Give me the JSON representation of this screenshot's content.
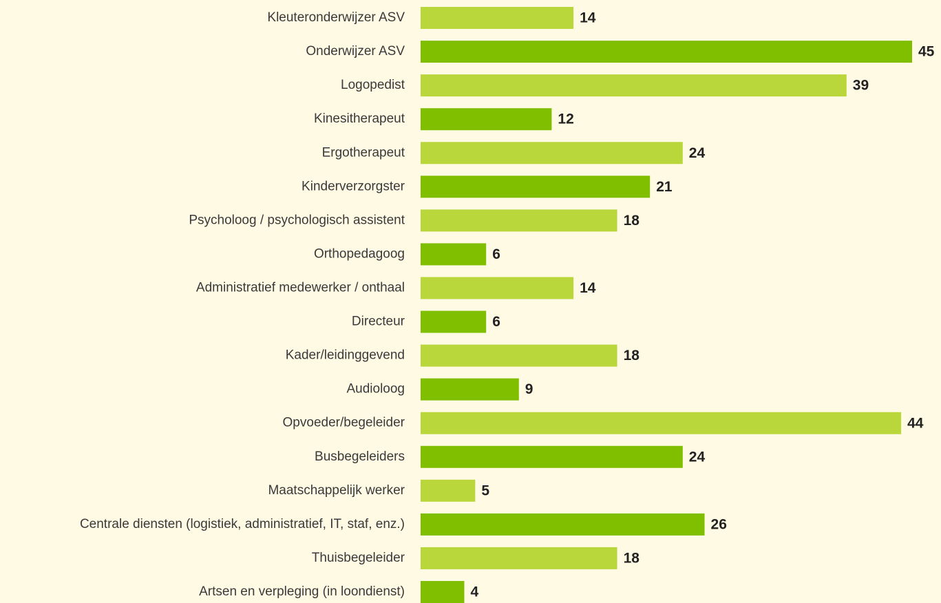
{
  "chart_data": {
    "type": "bar",
    "orientation": "horizontal",
    "categories": [
      "Kleuteronderwijzer ASV",
      "Onderwijzer ASV",
      "Logopedist",
      "Kinesitherapeut",
      "Ergotherapeut",
      "Kinderverzorgster",
      "Psycholoog / psychologisch assistent",
      "Orthopedagoog",
      "Administratief medewerker / onthaal",
      "Directeur",
      "Kader/leidinggevend",
      "Audioloog",
      "Opvoeder/begeleider",
      "Busbegeleiders",
      "Maatschappelijk werker",
      "Centrale diensten (logistiek, administratief, IT, staf, enz.)",
      "Thuisbegeleider",
      "Artsen en verpleging (in loondienst)"
    ],
    "values": [
      14,
      45,
      39,
      12,
      24,
      21,
      18,
      6,
      14,
      6,
      18,
      9,
      44,
      24,
      5,
      26,
      18,
      4
    ],
    "colors": [
      "#b9d63b",
      "#80bf00",
      "#b9d63b",
      "#80bf00",
      "#b9d63b",
      "#80bf00",
      "#b9d63b",
      "#80bf00",
      "#b9d63b",
      "#80bf00",
      "#b9d63b",
      "#80bf00",
      "#b9d63b",
      "#80bf00",
      "#b9d63b",
      "#80bf00",
      "#b9d63b",
      "#80bf00"
    ]
  }
}
